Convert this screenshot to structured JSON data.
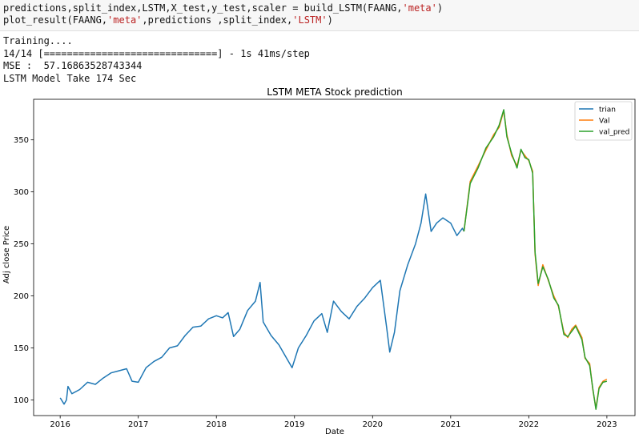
{
  "code": {
    "line1": {
      "a": "predictions,split_index,LSTM,X_test,y_test,scaler = build_LSTM(FAANG,",
      "s": "'meta'",
      "b": ")"
    },
    "line2": {
      "a": "plot_result(FAANG,",
      "s1": "'meta'",
      "b": ",predictions ,split_index,",
      "s2": "'LSTM'",
      "c": ")"
    }
  },
  "output": {
    "lines": [
      "Training....",
      "14/14 [==============================] - 1s 41ms/step",
      "MSE :  57.16863528743344",
      "LSTM Model Take 174 Sec"
    ]
  },
  "chart_data": {
    "type": "line",
    "title": "LSTM META Stock prediction",
    "xlabel": "Date",
    "ylabel": "Adj close Price",
    "x_ticks": [
      "2016",
      "2017",
      "2018",
      "2019",
      "2020",
      "2021",
      "2022",
      "2023"
    ],
    "y_ticks": [
      100,
      150,
      200,
      250,
      300,
      350
    ],
    "xlim": [
      2015.66,
      2023.36
    ],
    "ylim": [
      85,
      389
    ],
    "grid": false,
    "legend_position": "top-right",
    "series": [
      {
        "name": "trian",
        "color": "#1f77b4",
        "points": [
          [
            2016.0,
            102
          ],
          [
            2016.05,
            96
          ],
          [
            2016.08,
            100
          ],
          [
            2016.1,
            113
          ],
          [
            2016.15,
            106
          ],
          [
            2016.25,
            110
          ],
          [
            2016.35,
            117
          ],
          [
            2016.45,
            115
          ],
          [
            2016.55,
            121
          ],
          [
            2016.65,
            126
          ],
          [
            2016.75,
            128
          ],
          [
            2016.85,
            130
          ],
          [
            2016.92,
            118
          ],
          [
            2017.0,
            117
          ],
          [
            2017.1,
            131
          ],
          [
            2017.2,
            137
          ],
          [
            2017.3,
            141
          ],
          [
            2017.4,
            150
          ],
          [
            2017.5,
            152
          ],
          [
            2017.6,
            162
          ],
          [
            2017.7,
            170
          ],
          [
            2017.8,
            171
          ],
          [
            2017.9,
            178
          ],
          [
            2018.0,
            181
          ],
          [
            2018.08,
            179
          ],
          [
            2018.15,
            184
          ],
          [
            2018.22,
            161
          ],
          [
            2018.3,
            168
          ],
          [
            2018.4,
            186
          ],
          [
            2018.5,
            195
          ],
          [
            2018.56,
            213
          ],
          [
            2018.6,
            175
          ],
          [
            2018.7,
            162
          ],
          [
            2018.8,
            153
          ],
          [
            2018.9,
            140
          ],
          [
            2018.97,
            131
          ],
          [
            2019.05,
            150
          ],
          [
            2019.15,
            162
          ],
          [
            2019.25,
            176
          ],
          [
            2019.35,
            183
          ],
          [
            2019.42,
            165
          ],
          [
            2019.5,
            195
          ],
          [
            2019.6,
            185
          ],
          [
            2019.7,
            178
          ],
          [
            2019.8,
            190
          ],
          [
            2019.9,
            198
          ],
          [
            2020.0,
            208
          ],
          [
            2020.1,
            215
          ],
          [
            2020.18,
            170
          ],
          [
            2020.22,
            146
          ],
          [
            2020.28,
            165
          ],
          [
            2020.35,
            205
          ],
          [
            2020.45,
            230
          ],
          [
            2020.55,
            250
          ],
          [
            2020.62,
            270
          ],
          [
            2020.68,
            298
          ],
          [
            2020.75,
            262
          ],
          [
            2020.82,
            270
          ],
          [
            2020.9,
            275
          ],
          [
            2021.0,
            270
          ],
          [
            2021.08,
            258
          ],
          [
            2021.15,
            265
          ],
          [
            2021.17,
            262
          ]
        ]
      },
      {
        "name": "Val",
        "color": "#ff7f0e",
        "points": [
          [
            2021.17,
            262
          ],
          [
            2021.25,
            310
          ],
          [
            2021.35,
            325
          ],
          [
            2021.45,
            340
          ],
          [
            2021.55,
            355
          ],
          [
            2021.62,
            362
          ],
          [
            2021.68,
            378
          ],
          [
            2021.72,
            355
          ],
          [
            2021.78,
            335
          ],
          [
            2021.85,
            325
          ],
          [
            2021.9,
            340
          ],
          [
            2021.95,
            335
          ],
          [
            2022.0,
            330
          ],
          [
            2022.05,
            320
          ],
          [
            2022.08,
            240
          ],
          [
            2022.12,
            210
          ],
          [
            2022.18,
            230
          ],
          [
            2022.25,
            215
          ],
          [
            2022.32,
            200
          ],
          [
            2022.38,
            190
          ],
          [
            2022.45,
            165
          ],
          [
            2022.5,
            160
          ],
          [
            2022.55,
            168
          ],
          [
            2022.6,
            172
          ],
          [
            2022.68,
            160
          ],
          [
            2022.72,
            140
          ],
          [
            2022.78,
            135
          ],
          [
            2022.82,
            110
          ],
          [
            2022.86,
            92
          ],
          [
            2022.9,
            112
          ],
          [
            2022.95,
            118
          ],
          [
            2023.0,
            120
          ]
        ]
      },
      {
        "name": "val_pred",
        "color": "#2ca02c",
        "points": [
          [
            2021.17,
            262
          ],
          [
            2021.25,
            308
          ],
          [
            2021.35,
            323
          ],
          [
            2021.45,
            342
          ],
          [
            2021.55,
            353
          ],
          [
            2021.62,
            364
          ],
          [
            2021.68,
            379
          ],
          [
            2021.72,
            353
          ],
          [
            2021.78,
            337
          ],
          [
            2021.85,
            323
          ],
          [
            2021.9,
            341
          ],
          [
            2021.95,
            333
          ],
          [
            2022.0,
            331
          ],
          [
            2022.05,
            318
          ],
          [
            2022.08,
            242
          ],
          [
            2022.12,
            212
          ],
          [
            2022.18,
            228
          ],
          [
            2022.25,
            216
          ],
          [
            2022.32,
            198
          ],
          [
            2022.38,
            191
          ],
          [
            2022.45,
            163
          ],
          [
            2022.5,
            161
          ],
          [
            2022.55,
            166
          ],
          [
            2022.6,
            171
          ],
          [
            2022.68,
            158
          ],
          [
            2022.72,
            141
          ],
          [
            2022.78,
            133
          ],
          [
            2022.82,
            111
          ],
          [
            2022.86,
            91
          ],
          [
            2022.9,
            111
          ],
          [
            2022.95,
            117
          ],
          [
            2023.0,
            118
          ]
        ]
      }
    ]
  }
}
